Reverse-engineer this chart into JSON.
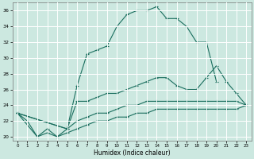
{
  "xlabel": "Humidex (Indice chaleur)",
  "bg_color": "#cce8e0",
  "line_color": "#1a6e5e",
  "grid_color": "#ffffff",
  "xlim": [
    -0.5,
    23.5
  ],
  "ylim": [
    19.5,
    37.0
  ],
  "yticks": [
    20,
    22,
    24,
    26,
    28,
    30,
    32,
    34,
    36
  ],
  "xticks": [
    0,
    1,
    2,
    3,
    4,
    5,
    6,
    7,
    8,
    9,
    10,
    11,
    12,
    13,
    14,
    15,
    16,
    17,
    18,
    19,
    20,
    21,
    22,
    23
  ],
  "lines": [
    {
      "x": [
        0,
        1,
        2,
        3,
        4,
        5,
        6,
        7,
        8,
        9,
        10,
        11,
        12,
        13,
        14,
        15,
        16,
        17,
        18,
        19,
        20
      ],
      "y": [
        23,
        22,
        20,
        21,
        20,
        21,
        26.5,
        30.5,
        31.0,
        31.5,
        34.0,
        35.5,
        36.0,
        36.0,
        36.5,
        35.0,
        35.0,
        34.0,
        32.0,
        32.0,
        27.0
      ]
    },
    {
      "x": [
        0,
        5,
        6,
        7,
        8,
        9,
        10,
        11,
        12,
        13,
        14,
        15,
        16,
        17,
        18,
        19,
        20,
        21,
        22,
        23
      ],
      "y": [
        23,
        21,
        24.5,
        24.5,
        25.0,
        25.5,
        25.5,
        26.0,
        26.5,
        27.0,
        27.5,
        27.5,
        26.5,
        26.0,
        26.0,
        27.5,
        29.0,
        27.0,
        25.5,
        24.0
      ]
    },
    {
      "x": [
        0,
        5,
        6,
        7,
        8,
        9,
        10,
        11,
        12,
        13,
        14,
        15,
        16,
        17,
        18,
        19,
        20,
        21,
        22,
        23
      ],
      "y": [
        23,
        21,
        22.0,
        22.5,
        23.0,
        23.0,
        23.5,
        24.0,
        24.0,
        24.5,
        24.5,
        24.5,
        24.5,
        24.5,
        24.5,
        24.5,
        24.5,
        24.5,
        24.5,
        24.0
      ]
    },
    {
      "x": [
        0,
        2,
        3,
        4,
        5,
        6,
        7,
        8,
        9,
        10,
        11,
        12,
        13,
        14,
        15,
        16,
        17,
        18,
        19,
        20,
        21,
        22,
        23
      ],
      "y": [
        23,
        20,
        20.5,
        20,
        20.5,
        21,
        21.5,
        22,
        22,
        22.5,
        22.5,
        23,
        23,
        23.5,
        23.5,
        23.5,
        23.5,
        23.5,
        23.5,
        23.5,
        23.5,
        23.5,
        24.0
      ]
    }
  ]
}
